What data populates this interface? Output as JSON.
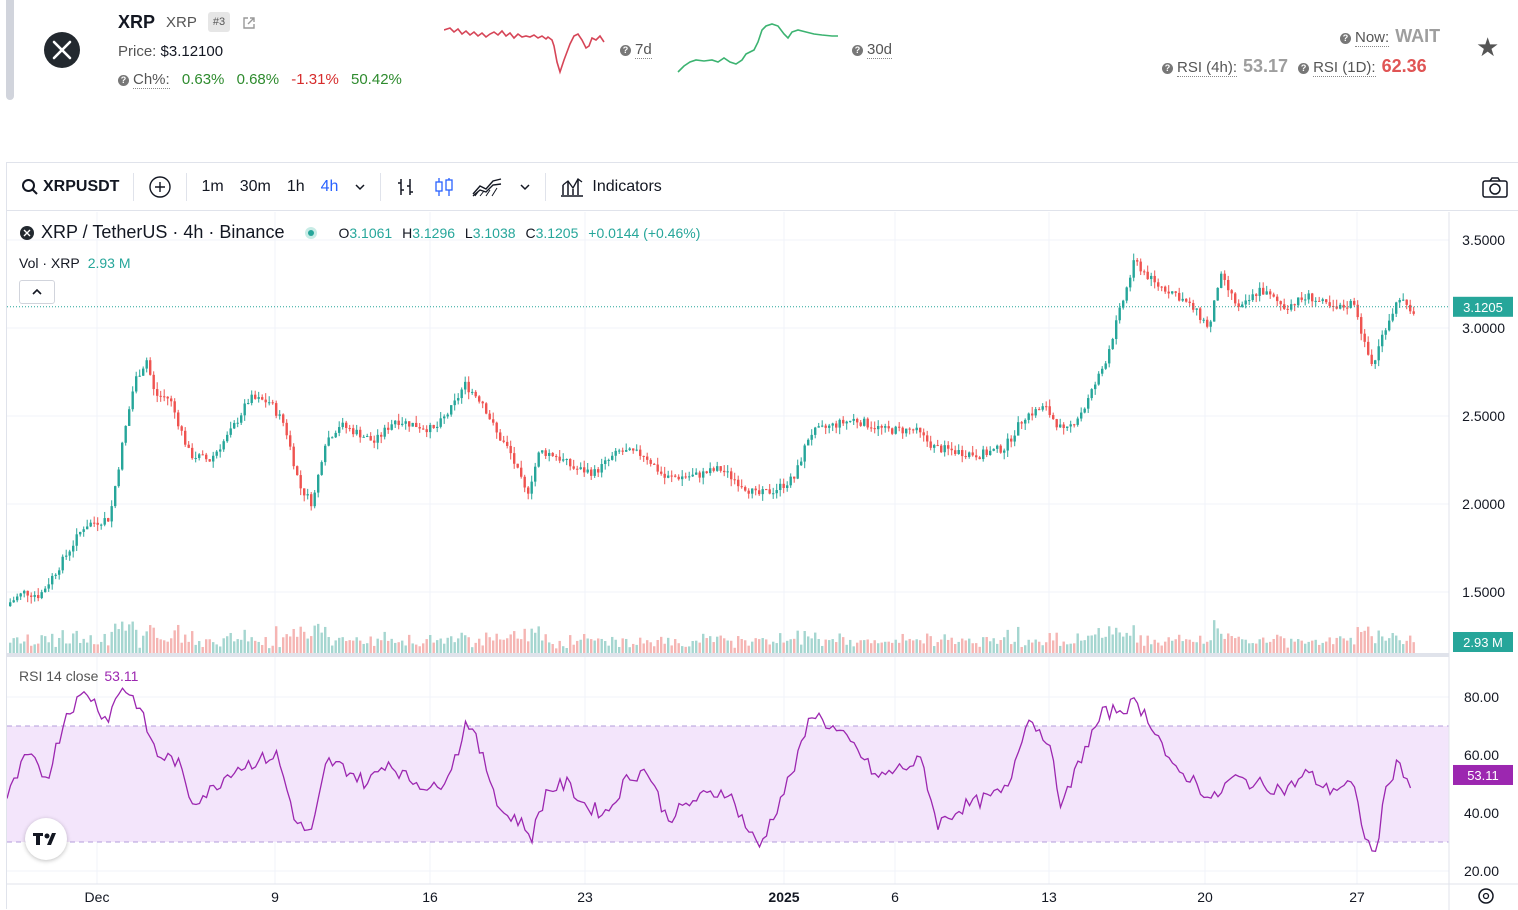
{
  "header": {
    "symbol": "XRP",
    "symbol_sub": "XRP",
    "rank": "#3",
    "price_label": "Price:",
    "price_value": "$3.12100",
    "change_label": "Ch%:",
    "changes": [
      "0.63%",
      "0.68%",
      "-1.31%",
      "50.42%"
    ],
    "spark_7d_label": "7d",
    "spark_30d_label": "30d",
    "now_label": "Now:",
    "now_value": "WAIT",
    "rsi4h_label": "RSI (4h):",
    "rsi4h_value": "53.17",
    "rsi1d_label": "RSI (1D):",
    "rsi1d_value": "62.36",
    "colors": {
      "up": "#2e8b2e",
      "down": "#d62c2c",
      "spark_down": "#d64557",
      "spark_up": "#3cb371"
    }
  },
  "toolbar": {
    "symbol": "XRPUSDT",
    "intervals": [
      "1m",
      "30m",
      "1h",
      "4h"
    ],
    "active_interval": "4h",
    "indicators_label": "Indicators"
  },
  "legend": {
    "title": "XRP / TetherUS · 4h · Binance",
    "o_label": "O",
    "o": "3.1061",
    "h_label": "H",
    "h": "3.1296",
    "l_label": "L",
    "l": "3.1038",
    "c_label": "C",
    "c": "3.1205",
    "change": "+0.0144 (+0.46%)",
    "vol_label": "Vol · XRP",
    "vol_value": "2.93 M",
    "rsi_label": "RSI 14 close",
    "rsi_value": "53.11"
  },
  "chart_data": {
    "type": "candlestick",
    "price_axis_ticks": [
      "3.5000",
      "3.0000",
      "2.5000",
      "2.0000",
      "1.5000"
    ],
    "rsi_axis_ticks": [
      "80.00",
      "60.00",
      "40.00",
      "20.00"
    ],
    "x_ticks": [
      "Dec",
      "9",
      "16",
      "23",
      "2025",
      "6",
      "13",
      "20",
      "27"
    ],
    "last_price_label": "3.1205",
    "vol_label": "2.93 M",
    "rsi_last_label": "53.11",
    "rsi_band": [
      30,
      70
    ],
    "price_range": [
      1.35,
      3.62
    ],
    "rsi_range": [
      20,
      85
    ],
    "anchors": [
      [
        0,
        1.42
      ],
      [
        20,
        1.5
      ],
      [
        35,
        1.48
      ],
      [
        55,
        1.65
      ],
      [
        80,
        1.88
      ],
      [
        105,
        1.92
      ],
      [
        118,
        2.35
      ],
      [
        130,
        2.7
      ],
      [
        142,
        2.82
      ],
      [
        150,
        2.62
      ],
      [
        165,
        2.6
      ],
      [
        185,
        2.28
      ],
      [
        205,
        2.25
      ],
      [
        225,
        2.4
      ],
      [
        245,
        2.6
      ],
      [
        265,
        2.58
      ],
      [
        280,
        2.45
      ],
      [
        295,
        2.1
      ],
      [
        308,
        2.0
      ],
      [
        320,
        2.35
      ],
      [
        335,
        2.45
      ],
      [
        355,
        2.4
      ],
      [
        370,
        2.35
      ],
      [
        390,
        2.48
      ],
      [
        410,
        2.45
      ],
      [
        430,
        2.42
      ],
      [
        448,
        2.55
      ],
      [
        460,
        2.68
      ],
      [
        478,
        2.58
      ],
      [
        492,
        2.4
      ],
      [
        505,
        2.3
      ],
      [
        522,
        2.05
      ],
      [
        535,
        2.3
      ],
      [
        550,
        2.28
      ],
      [
        570,
        2.2
      ],
      [
        590,
        2.18
      ],
      [
        615,
        2.3
      ],
      [
        640,
        2.28
      ],
      [
        660,
        2.15
      ],
      [
        690,
        2.16
      ],
      [
        715,
        2.2
      ],
      [
        735,
        2.12
      ],
      [
        752,
        2.05
      ],
      [
        770,
        2.08
      ],
      [
        790,
        2.15
      ],
      [
        805,
        2.4
      ],
      [
        830,
        2.45
      ],
      [
        850,
        2.48
      ],
      [
        880,
        2.42
      ],
      [
        910,
        2.42
      ],
      [
        930,
        2.32
      ],
      [
        950,
        2.3
      ],
      [
        975,
        2.28
      ],
      [
        1000,
        2.32
      ],
      [
        1020,
        2.5
      ],
      [
        1040,
        2.55
      ],
      [
        1060,
        2.4
      ],
      [
        1080,
        2.55
      ],
      [
        1100,
        2.8
      ],
      [
        1118,
        3.15
      ],
      [
        1130,
        3.38
      ],
      [
        1150,
        3.25
      ],
      [
        1170,
        3.2
      ],
      [
        1190,
        3.1
      ],
      [
        1205,
        3.0
      ],
      [
        1215,
        3.3
      ],
      [
        1235,
        3.1
      ],
      [
        1255,
        3.22
      ],
      [
        1280,
        3.12
      ],
      [
        1305,
        3.18
      ],
      [
        1330,
        3.1
      ],
      [
        1350,
        3.15
      ],
      [
        1360,
        2.9
      ],
      [
        1368,
        2.78
      ],
      [
        1380,
        3.0
      ],
      [
        1395,
        3.18
      ],
      [
        1405,
        3.08
      ],
      [
        1415,
        3.12
      ]
    ],
    "rsi_anchors": [
      [
        0,
        45
      ],
      [
        20,
        60
      ],
      [
        40,
        52
      ],
      [
        60,
        75
      ],
      [
        80,
        82
      ],
      [
        100,
        72
      ],
      [
        115,
        84
      ],
      [
        130,
        78
      ],
      [
        150,
        60
      ],
      [
        170,
        58
      ],
      [
        185,
        44
      ],
      [
        205,
        48
      ],
      [
        225,
        55
      ],
      [
        250,
        58
      ],
      [
        270,
        60
      ],
      [
        290,
        36
      ],
      [
        305,
        33
      ],
      [
        320,
        58
      ],
      [
        340,
        55
      ],
      [
        360,
        50
      ],
      [
        380,
        58
      ],
      [
        400,
        52
      ],
      [
        430,
        48
      ],
      [
        450,
        60
      ],
      [
        460,
        73
      ],
      [
        480,
        55
      ],
      [
        495,
        40
      ],
      [
        510,
        38
      ],
      [
        525,
        32
      ],
      [
        540,
        48
      ],
      [
        560,
        50
      ],
      [
        580,
        42
      ],
      [
        600,
        40
      ],
      [
        620,
        52
      ],
      [
        640,
        55
      ],
      [
        660,
        38
      ],
      [
        690,
        45
      ],
      [
        720,
        48
      ],
      [
        740,
        35
      ],
      [
        752,
        28
      ],
      [
        770,
        42
      ],
      [
        790,
        58
      ],
      [
        805,
        75
      ],
      [
        830,
        68
      ],
      [
        850,
        62
      ],
      [
        870,
        52
      ],
      [
        890,
        55
      ],
      [
        915,
        58
      ],
      [
        930,
        36
      ],
      [
        955,
        42
      ],
      [
        980,
        45
      ],
      [
        1000,
        48
      ],
      [
        1020,
        73
      ],
      [
        1040,
        66
      ],
      [
        1055,
        42
      ],
      [
        1075,
        60
      ],
      [
        1095,
        74
      ],
      [
        1115,
        76
      ],
      [
        1130,
        78
      ],
      [
        1150,
        68
      ],
      [
        1165,
        55
      ],
      [
        1185,
        52
      ],
      [
        1205,
        44
      ],
      [
        1225,
        52
      ],
      [
        1250,
        50
      ],
      [
        1280,
        48
      ],
      [
        1300,
        54
      ],
      [
        1320,
        48
      ],
      [
        1345,
        50
      ],
      [
        1360,
        30
      ],
      [
        1368,
        25
      ],
      [
        1380,
        50
      ],
      [
        1392,
        58
      ],
      [
        1405,
        48
      ],
      [
        1415,
        53
      ]
    ]
  }
}
